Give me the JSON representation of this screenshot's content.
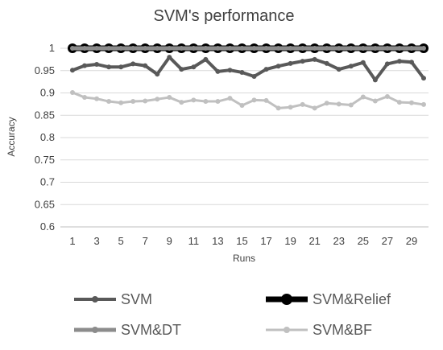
{
  "chart_data": {
    "type": "line",
    "title": "SVM's performance",
    "xlabel": "Runs",
    "ylabel": "Accuracy",
    "ylim": [
      0.6,
      1
    ],
    "yticks": [
      0.6,
      0.65,
      0.7,
      0.75,
      0.8,
      0.85,
      0.9,
      0.95,
      1
    ],
    "x": [
      1,
      2,
      3,
      4,
      5,
      6,
      7,
      8,
      9,
      10,
      11,
      12,
      13,
      14,
      15,
      16,
      17,
      18,
      19,
      20,
      21,
      22,
      23,
      24,
      25,
      26,
      27,
      28,
      29,
      30
    ],
    "xtick_labels": [
      "1",
      "3",
      "5",
      "7",
      "9",
      "11",
      "13",
      "15",
      "17",
      "19",
      "21",
      "23",
      "25",
      "27",
      "29"
    ],
    "grid": true,
    "legend_position": "bottom",
    "series": [
      {
        "name": "SVM",
        "color": "#595959",
        "values": [
          0.951,
          0.961,
          0.964,
          0.958,
          0.958,
          0.965,
          0.961,
          0.942,
          0.98,
          0.953,
          0.958,
          0.975,
          0.948,
          0.951,
          0.946,
          0.937,
          0.953,
          0.96,
          0.966,
          0.971,
          0.975,
          0.966,
          0.953,
          0.96,
          0.968,
          0.929,
          0.965,
          0.971,
          0.969,
          0.933
        ]
      },
      {
        "name": "SVM&Relief",
        "color": "#000000",
        "values": [
          1,
          1,
          1,
          1,
          1,
          1,
          1,
          1,
          1,
          1,
          1,
          1,
          1,
          1,
          1,
          1,
          1,
          1,
          1,
          1,
          1,
          1,
          1,
          1,
          1,
          1,
          1,
          1,
          1,
          1
        ]
      },
      {
        "name": "SVM&DT",
        "color": "#8c8c8c",
        "values": [
          1,
          1,
          1,
          1,
          1,
          1,
          1,
          1,
          1,
          1,
          1,
          1,
          1,
          1,
          1,
          1,
          1,
          1,
          1,
          1,
          1,
          1,
          1,
          1,
          1,
          1,
          1,
          1,
          1,
          1
        ]
      },
      {
        "name": "SVM&BF",
        "color": "#c0c0c0",
        "values": [
          0.901,
          0.89,
          0.887,
          0.881,
          0.878,
          0.881,
          0.882,
          0.886,
          0.89,
          0.879,
          0.884,
          0.881,
          0.881,
          0.888,
          0.872,
          0.884,
          0.883,
          0.866,
          0.868,
          0.874,
          0.866,
          0.877,
          0.875,
          0.873,
          0.891,
          0.882,
          0.892,
          0.879,
          0.878,
          0.874
        ]
      }
    ]
  }
}
